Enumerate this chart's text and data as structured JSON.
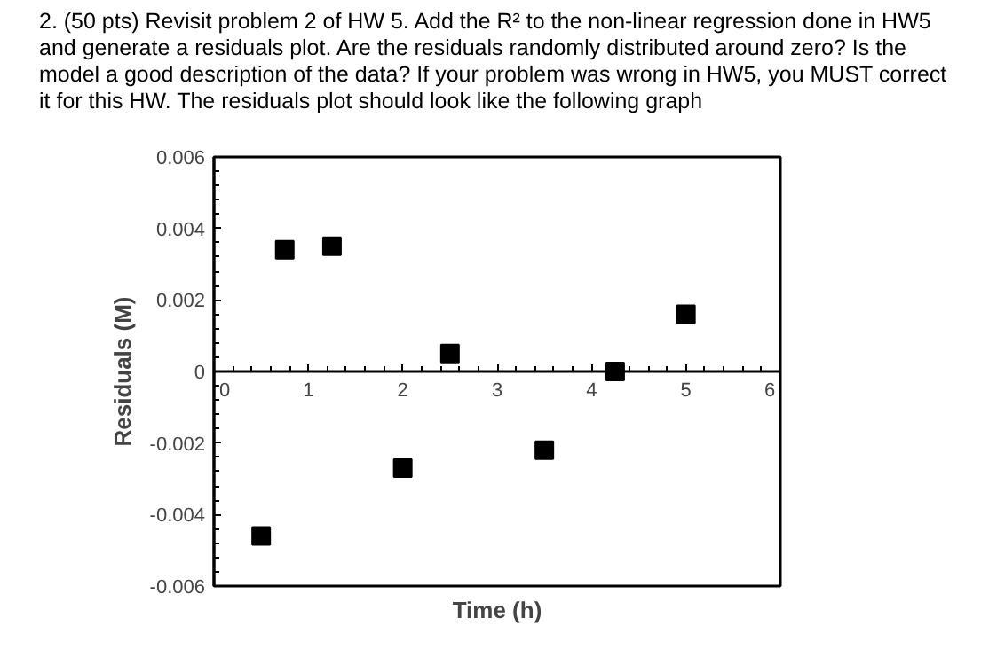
{
  "chart_data": {
    "type": "scatter",
    "title": "2. (50 pts) Revisit problem 2 of HW 5. Add the R² to the non-linear regression done in HW5 and generate a residuals plot. Are the residuals randomly distributed around zero? Is the model a good description of the data? If your problem was wrong in HW5, you MUST correct it for this HW. The residuals plot should look like the following graph",
    "xlabel": "Time (h)",
    "ylabel": "Residuals (M)",
    "series": [
      {
        "color": "#000000",
        "x": [
          0.5,
          0.75,
          1.25,
          2,
          2.5,
          3.5,
          4.25,
          5
        ],
        "values": [
          -0.0046,
          0.0034,
          0.0035,
          -0.0027,
          0.0005,
          -0.0022,
          0.0,
          0.0016
        ]
      }
    ],
    "xlim": [
      0,
      6
    ],
    "ylim": [
      -0.006,
      0.006
    ],
    "xticks": [
      0,
      1,
      2,
      3,
      4,
      5,
      6
    ],
    "yticks": [
      -0.006,
      -0.004,
      -0.002,
      0,
      0.002,
      0.004,
      0.006
    ],
    "marker": "square",
    "grid": false
  }
}
